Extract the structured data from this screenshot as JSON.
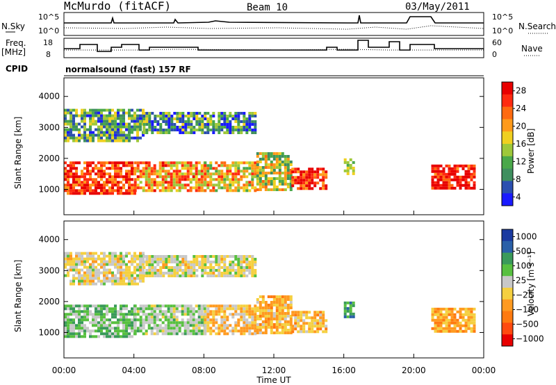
{
  "header": {
    "station": "McMurdo (fitACF)",
    "beam": "Beam 10",
    "date": "03/May/2011"
  },
  "top_panels": {
    "nsky_label": "N.Sky",
    "nsearch_label": "N.Search",
    "noise_ticks": [
      "10^5",
      "10^0"
    ],
    "noise_ticks_right": [
      "10^5",
      "10^0"
    ],
    "freq_label": "Freq.",
    "freq_unit": "[MHz]",
    "freq_ticks": [
      "18",
      "8"
    ],
    "nave_label": "Nave",
    "nave_ticks": [
      "60",
      "0"
    ],
    "cpid_label": "CPID",
    "cpid_value": "normalsound (fast) 157 RF"
  },
  "colors": {
    "power": [
      "#1a1aff",
      "#2b4fb0",
      "#3f8f5f",
      "#4aa84a",
      "#9ec83a",
      "#f0d020",
      "#ff9a1a",
      "#ff6a10",
      "#ff2a10",
      "#e80000"
    ],
    "velocity": [
      "#e80000",
      "#ff4a10",
      "#ff7a10",
      "#ff9a20",
      "#f5d040",
      "#c8c8c8",
      "#58c040",
      "#3a9a5a",
      "#2a60a8",
      "#1a3aa0"
    ]
  },
  "chart_data": [
    {
      "type": "heatmap",
      "title": "",
      "xlabel": "",
      "ylabel": "Slant Range [km]",
      "xlim": [
        "00:00",
        "00:00"
      ],
      "ylim": [
        180,
        4600
      ],
      "x_ticks": [
        "00:00",
        "04:00",
        "08:00",
        "12:00",
        "16:00",
        "20:00",
        "00:00"
      ],
      "y_ticks": [
        "1000",
        "2000",
        "3000",
        "4000"
      ],
      "colorbar": {
        "label": "Power [dB]",
        "ticks": [
          "28",
          "24",
          "20",
          "16",
          "12",
          "8",
          "4"
        ],
        "range": [
          0,
          30
        ]
      },
      "echo_regions": [
        {
          "start": "00:00",
          "end": "04:00",
          "range_km": [
            900,
            1900
          ],
          "power_db": 26
        },
        {
          "start": "04:00",
          "end": "08:00",
          "range_km": [
            1000,
            1900
          ],
          "power_db": 20
        },
        {
          "start": "08:00",
          "end": "11:00",
          "range_km": [
            1000,
            1900
          ],
          "power_db": 18
        },
        {
          "start": "11:00",
          "end": "13:00",
          "range_km": [
            1000,
            2200
          ],
          "power_db": 14
        },
        {
          "start": "13:00",
          "end": "15:00",
          "range_km": [
            1000,
            1700
          ],
          "power_db": 26
        },
        {
          "start": "16:00",
          "end": "16:30",
          "range_km": [
            1500,
            2000
          ],
          "power_db": 12
        },
        {
          "start": "21:00",
          "end": "23:30",
          "range_km": [
            1000,
            1800
          ],
          "power_db": 28
        },
        {
          "start": "00:00",
          "end": "04:30",
          "range_km": [
            2600,
            3600
          ],
          "power_db": 10
        },
        {
          "start": "04:30",
          "end": "11:00",
          "range_km": [
            2800,
            3500
          ],
          "power_db": 8
        }
      ]
    },
    {
      "type": "heatmap",
      "title": "",
      "xlabel": "Time UT",
      "ylabel": "Slant Range [km]",
      "xlim": [
        "00:00",
        "00:00"
      ],
      "ylim": [
        180,
        4600
      ],
      "x_ticks": [
        "00:00",
        "04:00",
        "08:00",
        "12:00",
        "16:00",
        "20:00",
        "00:00"
      ],
      "y_ticks": [
        "1000",
        "2000",
        "3000",
        "4000"
      ],
      "colorbar": {
        "label": "Velocity [m s⁻¹]",
        "ticks": [
          "1000",
          "500",
          "100",
          "25",
          "−25",
          "−100",
          "−500",
          "−1000"
        ],
        "range": [
          -1000,
          1000
        ]
      },
      "echo_regions": [
        {
          "start": "00:00",
          "end": "04:00",
          "range_km": [
            900,
            1900
          ],
          "velocity_ms": 300
        },
        {
          "start": "04:00",
          "end": "08:00",
          "range_km": [
            1000,
            1900
          ],
          "velocity_ms": 200
        },
        {
          "start": "08:00",
          "end": "11:00",
          "range_km": [
            1000,
            1900
          ],
          "velocity_ms": -150
        },
        {
          "start": "11:00",
          "end": "13:00",
          "range_km": [
            1000,
            2200
          ],
          "velocity_ms": -200
        },
        {
          "start": "13:00",
          "end": "15:00",
          "range_km": [
            1000,
            1700
          ],
          "velocity_ms": -200
        },
        {
          "start": "16:00",
          "end": "16:30",
          "range_km": [
            1500,
            2000
          ],
          "velocity_ms": 500
        },
        {
          "start": "21:00",
          "end": "23:30",
          "range_km": [
            1000,
            1800
          ],
          "velocity_ms": -250
        },
        {
          "start": "00:00",
          "end": "04:30",
          "range_km": [
            2600,
            3600
          ],
          "velocity_ms": 0
        },
        {
          "start": "04:30",
          "end": "11:00",
          "range_km": [
            2800,
            3500
          ],
          "velocity_ms": 20
        }
      ]
    }
  ]
}
